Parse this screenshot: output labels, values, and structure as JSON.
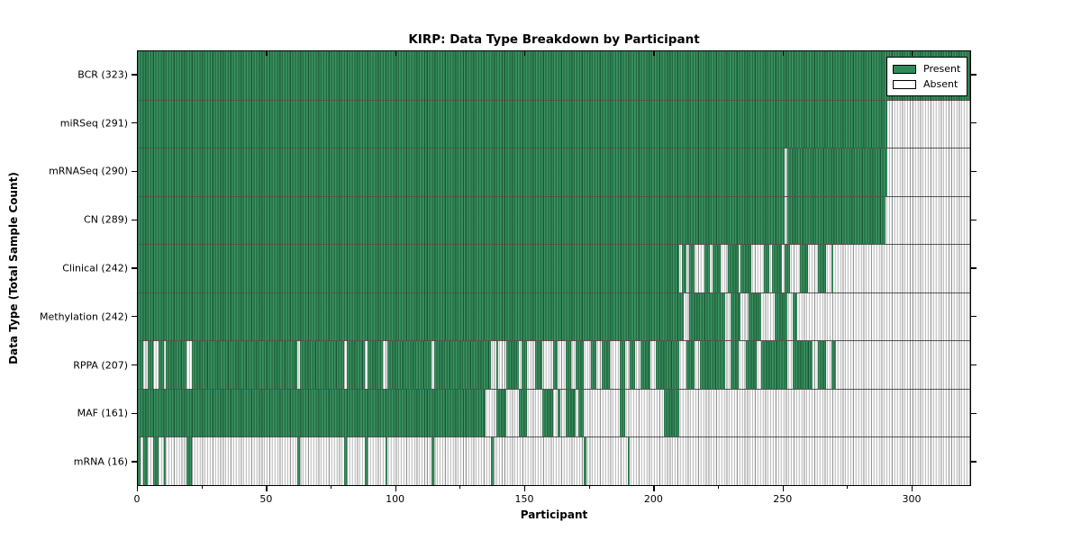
{
  "title": "KIRP: Data Type Breakdown by Participant",
  "axes": {
    "xlabel": "Participant",
    "ylabel": "Data Type (Total Sample Count)"
  },
  "legend": {
    "items": [
      {
        "label": "Present",
        "color": "#2e8b57"
      },
      {
        "label": "Absent",
        "color": "#ffffff"
      }
    ]
  },
  "colors": {
    "present_fill": "#2e8b57",
    "present_edge": "#1b5435",
    "absent_fill": "#ffffff",
    "absent_edge": "#828282",
    "frame": "#000000"
  },
  "chart_data": {
    "type": "heatmap",
    "title": "KIRP: Data Type Breakdown by Participant",
    "xlabel": "Participant",
    "ylabel": "Data Type (Total Sample Count)",
    "x_min": 0,
    "x_max": 323,
    "x_major_ticks": [
      0,
      50,
      100,
      150,
      200,
      250,
      300
    ],
    "x_minor_ticks": [
      25,
      75,
      125,
      175,
      225,
      275
    ],
    "legend_position": "upper right",
    "value_legend": {
      "present": "Present",
      "absent": "Absent"
    },
    "rows": [
      {
        "name": "BCR",
        "total": 323,
        "display": "BCR (323)",
        "present_ranges": [
          [
            0,
            322
          ]
        ]
      },
      {
        "name": "miRSeq",
        "total": 291,
        "display": "miRSeq (291)",
        "present_ranges": [
          [
            0,
            290
          ]
        ]
      },
      {
        "name": "mRNASeq",
        "total": 290,
        "display": "mRNASeq (290)",
        "present_ranges": [
          [
            0,
            250
          ],
          [
            252,
            290
          ]
        ]
      },
      {
        "name": "CN",
        "total": 289,
        "display": "CN (289)",
        "present_ranges": [
          [
            0,
            250
          ],
          [
            252,
            289
          ]
        ]
      },
      {
        "name": "Clinical",
        "total": 242,
        "display": "Clinical (242)",
        "present_ranges": [
          [
            0,
            209
          ],
          [
            211,
            212
          ],
          [
            214,
            215
          ],
          [
            220,
            221
          ],
          [
            223,
            225
          ],
          [
            229,
            232
          ],
          [
            234,
            237
          ],
          [
            243,
            244
          ],
          [
            246,
            249
          ],
          [
            251,
            252
          ],
          [
            257,
            259
          ],
          [
            264,
            266
          ],
          [
            269,
            269
          ]
        ]
      },
      {
        "name": "Methylation",
        "total": 242,
        "display": "Methylation (242)",
        "present_ranges": [
          [
            0,
            211
          ],
          [
            214,
            227
          ],
          [
            230,
            233
          ],
          [
            237,
            241
          ],
          [
            247,
            251
          ],
          [
            254,
            255
          ]
        ]
      },
      {
        "name": "RPPA",
        "total": 207,
        "display": "RPPA (207)",
        "present_ranges": [
          [
            0,
            1
          ],
          [
            4,
            5
          ],
          [
            8,
            9
          ],
          [
            11,
            18
          ],
          [
            21,
            61
          ],
          [
            63,
            79
          ],
          [
            81,
            87
          ],
          [
            89,
            94
          ],
          [
            97,
            113
          ],
          [
            115,
            136
          ],
          [
            139,
            139
          ],
          [
            143,
            147
          ],
          [
            149,
            150
          ],
          [
            154,
            156
          ],
          [
            161,
            162
          ],
          [
            166,
            167
          ],
          [
            170,
            172
          ],
          [
            176,
            177
          ],
          [
            180,
            182
          ],
          [
            187,
            188
          ],
          [
            191,
            192
          ],
          [
            195,
            198
          ],
          [
            201,
            209
          ],
          [
            213,
            215
          ],
          [
            218,
            227
          ],
          [
            230,
            232
          ],
          [
            236,
            239
          ],
          [
            242,
            251
          ],
          [
            254,
            261
          ],
          [
            264,
            266
          ],
          [
            269,
            270
          ]
        ]
      },
      {
        "name": "MAF",
        "total": 161,
        "display": "MAF (161)",
        "present_ranges": [
          [
            0,
            134
          ],
          [
            139,
            142
          ],
          [
            148,
            150
          ],
          [
            157,
            160
          ],
          [
            163,
            163
          ],
          [
            166,
            169
          ],
          [
            171,
            172
          ],
          [
            187,
            188
          ],
          [
            204,
            209
          ]
        ]
      },
      {
        "name": "mRNA",
        "total": 16,
        "display": "mRNA (16)",
        "present_ranges": [
          [
            0,
            0
          ],
          [
            2,
            3
          ],
          [
            6,
            7
          ],
          [
            10,
            10
          ],
          [
            19,
            20
          ],
          [
            62,
            62
          ],
          [
            80,
            80
          ],
          [
            88,
            88
          ],
          [
            96,
            96
          ],
          [
            114,
            114
          ],
          [
            137,
            137
          ],
          [
            173,
            173
          ],
          [
            190,
            190
          ]
        ]
      }
    ]
  }
}
